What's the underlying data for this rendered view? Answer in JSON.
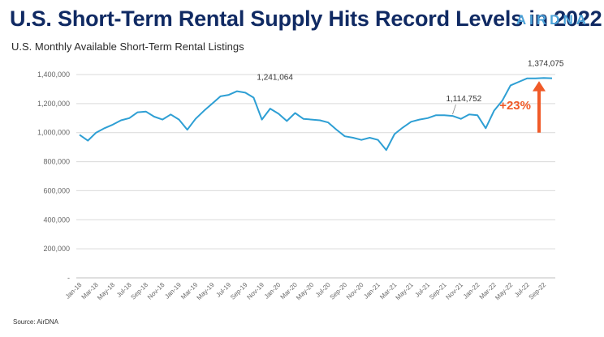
{
  "headline": "U.S. Short-Term Rental Supply Hits Record Levels in 2022",
  "brand": "AIRDNA",
  "subtitle": "U.S. Monthly Available Short-Term Rental Listings",
  "source": "Source: AirDNA",
  "colors": {
    "headline": "#102a63",
    "brand": "#4da3d9",
    "line": "#2e9fd4",
    "arrow": "#f05a28",
    "grid": "#d9d9d9"
  },
  "chart_data": {
    "type": "line",
    "title": "U.S. Monthly Available Short-Term Rental Listings",
    "xlabel": "",
    "ylabel": "",
    "ylim": [
      0,
      1400000
    ],
    "yticks": [
      0,
      200000,
      400000,
      600000,
      800000,
      1000000,
      1200000,
      1400000
    ],
    "ytick_labels": [
      "-",
      "200,000",
      "400,000",
      "600,000",
      "800,000",
      "1,000,000",
      "1,200,000",
      "1,400,000"
    ],
    "xtick_labels": [
      "Jan-18",
      "Mar-18",
      "May-18",
      "Jul-18",
      "Sep-18",
      "Nov-18",
      "Jan-19",
      "Mar-19",
      "May-19",
      "Jul-19",
      "Sep-19",
      "Nov-19",
      "Jan-20",
      "Mar-20",
      "May-20",
      "Jul-20",
      "Sep-20",
      "Nov-20",
      "Jan-21",
      "Mar-21",
      "May-21",
      "Jul-21",
      "Sep-21",
      "Nov-21",
      "Jan-22",
      "Mar-22",
      "May-22",
      "Jul-22",
      "Sep-22"
    ],
    "grid": true,
    "series": [
      {
        "x": [
          "Jan-18",
          "Feb-18",
          "Mar-18",
          "Apr-18",
          "May-18",
          "Jun-18",
          "Jul-18",
          "Aug-18",
          "Sep-18",
          "Oct-18",
          "Nov-18",
          "Dec-18",
          "Jan-19",
          "Feb-19",
          "Mar-19",
          "Apr-19",
          "May-19",
          "Jun-19",
          "Jul-19",
          "Aug-19",
          "Sep-19",
          "Oct-19",
          "Nov-19",
          "Dec-19",
          "Jan-20",
          "Feb-20",
          "Mar-20",
          "Apr-20",
          "May-20",
          "Jun-20",
          "Jul-20",
          "Aug-20",
          "Sep-20",
          "Oct-20",
          "Nov-20",
          "Dec-20",
          "Jan-21",
          "Feb-21",
          "Mar-21",
          "Apr-21",
          "May-21",
          "Jun-21",
          "Jul-21",
          "Aug-21",
          "Sep-21",
          "Oct-21",
          "Nov-21",
          "Dec-21",
          "Jan-22",
          "Feb-22",
          "Mar-22",
          "Apr-22",
          "May-22",
          "Jun-22",
          "Jul-22",
          "Aug-22",
          "Sep-22",
          "Oct-22"
        ],
        "values": [
          985000,
          945000,
          1000000,
          1030000,
          1055000,
          1085000,
          1100000,
          1140000,
          1145000,
          1110000,
          1090000,
          1125000,
          1090000,
          1020000,
          1095000,
          1150000,
          1200000,
          1250000,
          1260000,
          1285000,
          1275000,
          1241064,
          1090000,
          1165000,
          1130000,
          1080000,
          1135000,
          1095000,
          1090000,
          1085000,
          1070000,
          1020000,
          975000,
          965000,
          950000,
          965000,
          950000,
          880000,
          990000,
          1035000,
          1075000,
          1090000,
          1100000,
          1120000,
          1120000,
          1114752,
          1095000,
          1125000,
          1120000,
          1030000,
          1150000,
          1220000,
          1325000,
          1350000,
          1374000,
          1373000,
          1376000,
          1374075
        ]
      }
    ],
    "annotations": [
      {
        "label": "1,241,064",
        "x": "Oct-19",
        "value": 1241064
      },
      {
        "label": "1,114,752",
        "x": "Oct-21",
        "value": 1114752
      },
      {
        "label": "1,374,075",
        "x": "Oct-22",
        "value": 1374075
      }
    ],
    "change_label": "+23%"
  }
}
